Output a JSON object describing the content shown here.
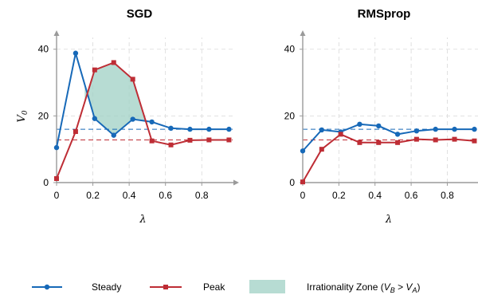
{
  "colors": {
    "steady": "#1769b8",
    "peak": "#be2d35",
    "zone": "#9fd0c4",
    "grid": "#d9d9d9",
    "axis": "#9a9a9a"
  },
  "legend": {
    "steady": "Steady",
    "peak": "Peak",
    "zone_prefix": "Irrationality Zone (",
    "zone_vb": "V",
    "zone_vb_sub": "B",
    "zone_gt": " > ",
    "zone_va": "V",
    "zone_va_sub": "A",
    "zone_suffix": ")"
  },
  "chart_data": [
    {
      "type": "line",
      "title": "SGD",
      "xlabel": "λ",
      "ylabel": "V",
      "ylabel_sub": "0",
      "xlim": [
        0,
        0.97
      ],
      "ylim": [
        0,
        44
      ],
      "xticks": [
        0,
        0.2,
        0.4,
        0.6,
        0.8
      ],
      "xtick_labels": [
        "0",
        "0.2",
        "0.4",
        "0.6",
        "0.8"
      ],
      "yticks": [
        0,
        20,
        40
      ],
      "ytick_labels": [
        "0",
        "20",
        "40"
      ],
      "grid": true,
      "x": [
        0,
        0.105,
        0.21,
        0.315,
        0.42,
        0.525,
        0.63,
        0.735,
        0.84,
        0.95
      ],
      "series": [
        {
          "name": "Steady",
          "values": [
            10.5,
            38.8,
            19.2,
            14.2,
            19.0,
            18.2,
            16.3,
            16.0,
            16.0,
            16.0
          ]
        },
        {
          "name": "Peak",
          "values": [
            1.2,
            15.3,
            33.8,
            36.0,
            31.0,
            12.5,
            11.3,
            12.7,
            12.8,
            12.8
          ]
        }
      ],
      "hlines": [
        {
          "series": "Steady",
          "y": 16.0
        },
        {
          "series": "Peak",
          "y": 12.8
        }
      ],
      "irrationality_zone": {
        "from_x": 0.155,
        "to_x": 0.5
      }
    },
    {
      "type": "line",
      "title": "RMSprop",
      "xlabel": "λ",
      "ylabel": "",
      "ylabel_sub": "",
      "xlim": [
        0,
        0.97
      ],
      "ylim": [
        0,
        44
      ],
      "xticks": [
        0,
        0.2,
        0.4,
        0.6,
        0.8
      ],
      "xtick_labels": [
        "0",
        "0.2",
        "0.4",
        "0.6",
        "0.8"
      ],
      "yticks": [
        0,
        20,
        40
      ],
      "ytick_labels": [
        "0",
        "20",
        "40"
      ],
      "grid": true,
      "x": [
        0,
        0.105,
        0.21,
        0.315,
        0.42,
        0.525,
        0.63,
        0.735,
        0.84,
        0.95
      ],
      "series": [
        {
          "name": "Steady",
          "values": [
            9.5,
            15.8,
            15.2,
            17.5,
            17.0,
            14.5,
            15.5,
            16.0,
            16.0,
            16.0
          ]
        },
        {
          "name": "Peak",
          "values": [
            0.2,
            10.0,
            14.5,
            12.0,
            12.0,
            12.0,
            13.0,
            12.8,
            13.0,
            12.5
          ]
        }
      ],
      "hlines": [
        {
          "series": "Steady",
          "y": 16.0
        },
        {
          "series": "Peak",
          "y": 12.8
        }
      ],
      "irrationality_zone": null
    }
  ]
}
